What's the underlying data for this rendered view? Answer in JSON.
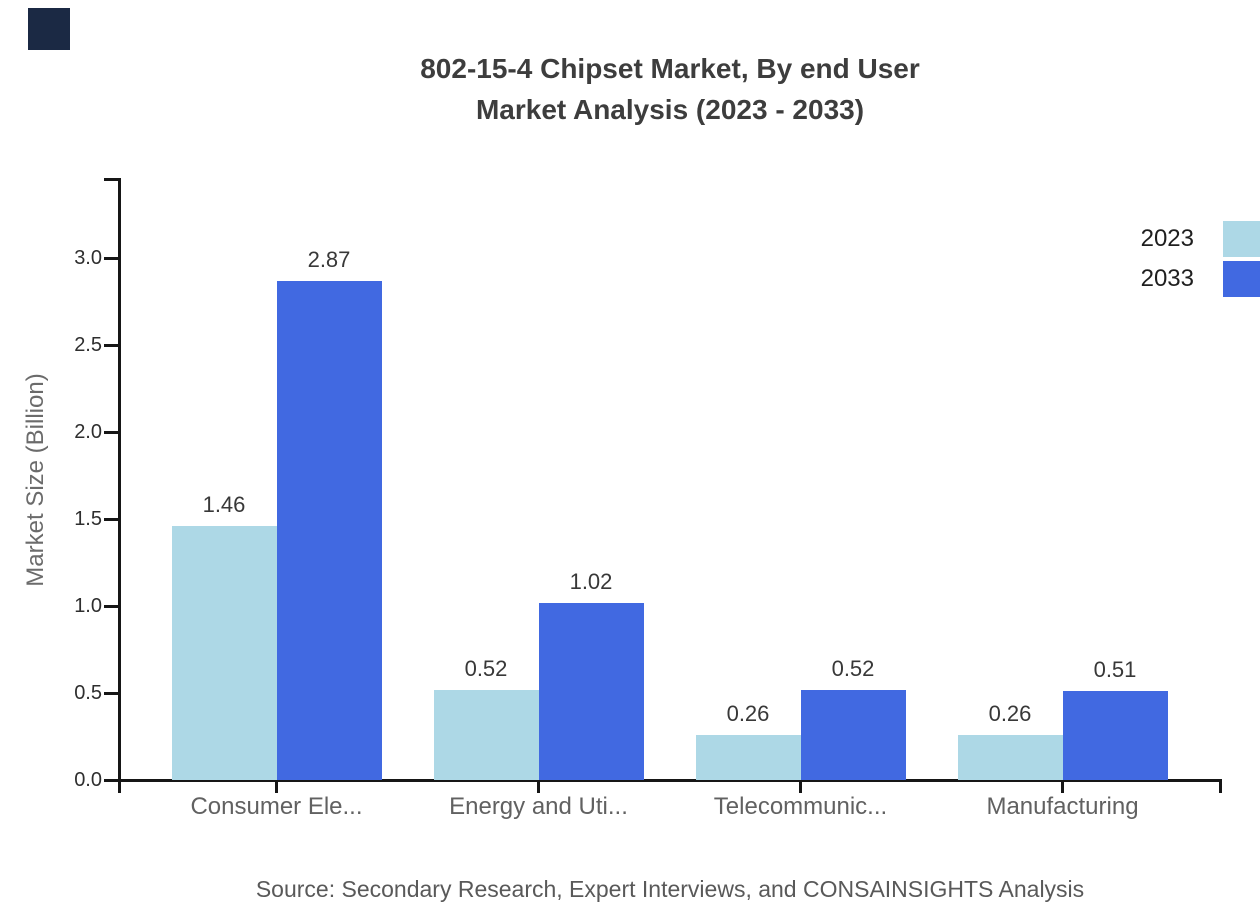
{
  "corner_square": {
    "color": "#1b2944"
  },
  "title": {
    "line1": "802-15-4 Chipset Market, By end User",
    "line2": "Market Analysis (2023 - 2033)"
  },
  "legend": [
    {
      "label": "2023",
      "color": "#ADD8E6"
    },
    {
      "label": "2033",
      "color": "#4169E1"
    }
  ],
  "source": "Source: Secondary Research, Expert Interviews, and CONSAINSIGHTS Analysis",
  "chart_data": {
    "type": "bar",
    "title": "802-15-4 Chipset Market, By end User Market Analysis (2023 - 2033)",
    "categories": [
      "Consumer Ele...",
      "Energy and Uti...",
      "Telecommunic...",
      "Manufacturing"
    ],
    "series": [
      {
        "name": "2023",
        "color": "#ADD8E6",
        "values": [
          1.46,
          0.52,
          0.26,
          0.26
        ]
      },
      {
        "name": "2033",
        "color": "#4169E1",
        "values": [
          2.87,
          1.02,
          0.52,
          0.51
        ]
      }
    ],
    "xlabel": "",
    "ylabel": "Market Size (Billion)",
    "ylim": [
      0,
      3.45
    ],
    "yticks": [
      0.0,
      0.5,
      1.0,
      1.5,
      2.0,
      2.5,
      3.0
    ],
    "ytick_labels": [
      "0.0",
      "0.5",
      "1.0",
      "1.5",
      "2.0",
      "2.5",
      "3.0"
    ],
    "grid": false,
    "legend_position": "top-right",
    "value_labels": true
  }
}
